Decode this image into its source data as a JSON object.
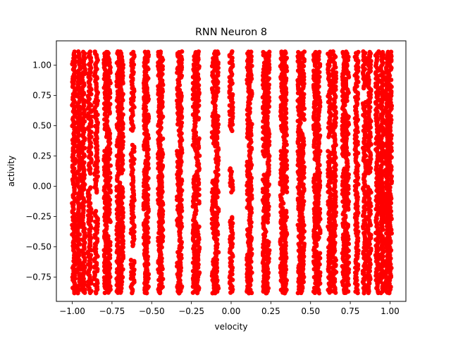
{
  "chart_data": {
    "type": "scatter",
    "title": "RNN Neuron 8",
    "xlabel": "velocity",
    "ylabel": "activity",
    "xlim": [
      -1.1,
      1.1
    ],
    "ylim": [
      -0.95,
      1.2
    ],
    "xticks": [
      -1.0,
      -0.75,
      -0.5,
      -0.25,
      0.0,
      0.25,
      0.5,
      0.75,
      1.0
    ],
    "xtick_labels": [
      "−1.00",
      "−0.75",
      "−0.50",
      "−0.25",
      "0.00",
      "0.25",
      "0.50",
      "0.75",
      "1.00"
    ],
    "yticks": [
      -0.75,
      -0.5,
      -0.25,
      0.0,
      0.25,
      0.5,
      0.75,
      1.0
    ],
    "ytick_labels": [
      "−0.75",
      "−0.50",
      "−0.25",
      "0.00",
      "0.25",
      "0.50",
      "0.75",
      "1.00"
    ],
    "point_color": "#ff0000",
    "grid": false,
    "legend": "none",
    "y_range_of_points": [
      -0.88,
      1.12
    ],
    "columns": [
      {
        "x": -0.99,
        "gaps": []
      },
      {
        "x": -0.96,
        "gaps": []
      },
      {
        "x": -0.93,
        "gaps": []
      },
      {
        "x": -0.89,
        "gaps": [
          [
            0.0,
            0.1
          ]
        ]
      },
      {
        "x": -0.85,
        "gaps": [
          [
            -0.2,
            -0.05
          ]
        ]
      },
      {
        "x": -0.79,
        "gaps": [
          [
            0.3,
            0.4
          ]
        ]
      },
      {
        "x": -0.77,
        "gaps": [
          [
            0.5,
            0.6
          ],
          [
            -0.4,
            -0.3
          ]
        ]
      },
      {
        "x": -0.71,
        "gaps": []
      },
      {
        "x": -0.69,
        "gaps": [
          [
            0.0,
            0.1
          ]
        ]
      },
      {
        "x": -0.62,
        "gaps": [
          [
            0.35,
            0.45
          ],
          [
            -0.6,
            -0.5
          ]
        ]
      },
      {
        "x": -0.54,
        "gaps": [
          [
            0.2,
            0.3
          ],
          [
            -0.3,
            -0.2
          ]
        ]
      },
      {
        "x": -0.53,
        "gaps": [
          [
            0.6,
            0.7
          ]
        ]
      },
      {
        "x": -0.45,
        "gaps": []
      },
      {
        "x": -0.44,
        "gaps": [
          [
            0.4,
            0.5
          ]
        ]
      },
      {
        "x": -0.33,
        "gaps": [
          [
            0.3,
            0.5
          ],
          [
            -0.5,
            -0.35
          ]
        ]
      },
      {
        "x": -0.32,
        "gaps": [
          [
            0.8,
            0.9
          ]
        ]
      },
      {
        "x": -0.23,
        "gaps": [
          [
            0.1,
            0.3
          ]
        ]
      },
      {
        "x": -0.21,
        "gaps": [
          [
            0.4,
            0.55
          ],
          [
            -0.3,
            -0.15
          ]
        ]
      },
      {
        "x": -0.11,
        "gaps": [
          [
            0.05,
            0.35
          ],
          [
            -0.6,
            -0.45
          ]
        ]
      },
      {
        "x": -0.09,
        "gaps": [
          [
            0.6,
            0.7
          ]
        ]
      },
      {
        "x": 0.0,
        "gaps": [
          [
            0.15,
            0.45
          ],
          [
            -0.25,
            -0.05
          ]
        ]
      },
      {
        "x": 0.11,
        "gaps": [
          [
            0.2,
            0.4
          ],
          [
            -0.35,
            -0.2
          ]
        ]
      },
      {
        "x": 0.12,
        "gaps": [
          [
            0.55,
            0.7
          ]
        ]
      },
      {
        "x": 0.21,
        "gaps": [
          [
            0.1,
            0.25
          ]
        ]
      },
      {
        "x": 0.23,
        "gaps": [
          [
            -0.45,
            -0.3
          ]
        ]
      },
      {
        "x": 0.32,
        "gaps": [
          [
            0.3,
            0.45
          ]
        ]
      },
      {
        "x": 0.34,
        "gaps": [
          [
            -0.2,
            -0.05
          ]
        ]
      },
      {
        "x": 0.43,
        "gaps": []
      },
      {
        "x": 0.45,
        "gaps": [
          [
            0.45,
            0.55
          ]
        ]
      },
      {
        "x": 0.53,
        "gaps": [
          [
            0.1,
            0.2
          ]
        ]
      },
      {
        "x": 0.55,
        "gaps": [
          [
            -0.55,
            -0.45
          ]
        ]
      },
      {
        "x": 0.62,
        "gaps": [
          [
            0.3,
            0.4
          ]
        ]
      },
      {
        "x": 0.65,
        "gaps": []
      },
      {
        "x": 0.71,
        "gaps": [
          [
            0.15,
            0.25
          ]
        ]
      },
      {
        "x": 0.73,
        "gaps": [
          [
            0.6,
            0.7
          ],
          [
            -0.3,
            -0.2
          ]
        ]
      },
      {
        "x": 0.79,
        "gaps": []
      },
      {
        "x": 0.84,
        "gaps": [
          [
            0.7,
            0.8
          ]
        ]
      },
      {
        "x": 0.87,
        "gaps": [
          [
            0.0,
            0.1
          ]
        ]
      },
      {
        "x": 0.92,
        "gaps": []
      },
      {
        "x": 0.95,
        "gaps": []
      },
      {
        "x": 0.98,
        "gaps": []
      },
      {
        "x": 1.0,
        "gaps": []
      }
    ]
  }
}
